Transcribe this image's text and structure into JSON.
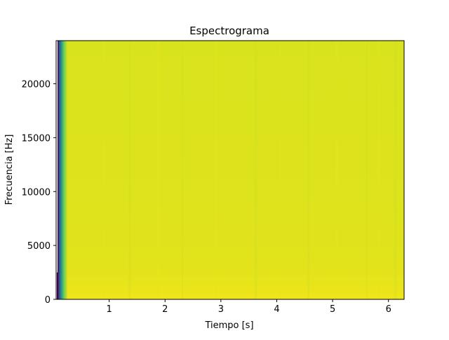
{
  "chart_data": {
    "type": "heatmap",
    "title": "Espectrograma",
    "xlabel": "Tiempo [s]",
    "ylabel": "Frecuencia [Hz]",
    "xlim": [
      0.05,
      6.28
    ],
    "ylim": [
      0,
      24000
    ],
    "x_ticks": [
      1,
      2,
      3,
      4,
      5,
      6
    ],
    "x_tick_labels": [
      "1",
      "2",
      "3",
      "4",
      "5",
      "6"
    ],
    "y_ticks": [
      0,
      5000,
      10000,
      15000,
      20000
    ],
    "y_tick_labels": [
      "0",
      "5000",
      "10000",
      "15000",
      "20000"
    ],
    "grid": false,
    "legend": "none",
    "colormap": "viridis",
    "colors": {
      "background": "#ffffff",
      "axes": "#000000",
      "dominant": "#d6e21c",
      "low_band": "#e8e21a",
      "edge_dark": "#440154",
      "edge_blue": "#31688e",
      "edge_teal": "#21918c",
      "edge_green": "#5ec962"
    }
  }
}
